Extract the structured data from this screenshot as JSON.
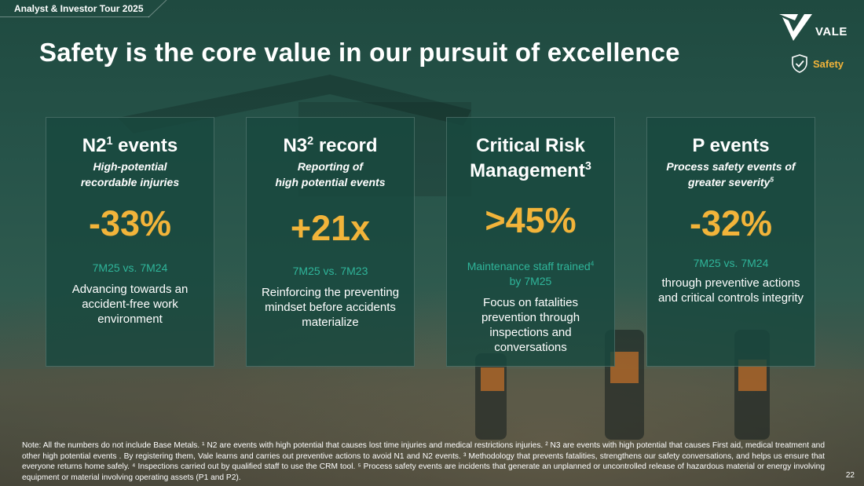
{
  "header": {
    "event_label": "Analyst & Investor Tour 2025",
    "title": "Safety is the core value in our pursuit of excellence",
    "logo_text": "VALE",
    "section_badge": "Safety"
  },
  "cards": [
    {
      "title": "N2",
      "title_sup": "1",
      "title_rest": " events",
      "subtitle_line1": "High-potential",
      "subtitle_line2": "recordable injuries",
      "value": "-33%",
      "comparison": "7M25 vs. 7M24",
      "description": "Advancing towards an accident-free work environment"
    },
    {
      "title": "N3",
      "title_sup": "2",
      "title_rest": " record",
      "subtitle_line1": "Reporting of",
      "subtitle_line2": "high potential events",
      "value": "+21x",
      "comparison": "7M25 vs. 7M23",
      "description": "Reinforcing the preventing mindset before accidents materialize"
    },
    {
      "title_line1": "Critical Risk",
      "title_line2": "Management",
      "title_sup": "3",
      "value": ">45%",
      "comparison_line1": "Maintenance staff trained",
      "comparison_sup": "4",
      "comparison_line2": "by 7M25",
      "description": "Focus on fatalities prevention through inspections and conversations"
    },
    {
      "title": "P events",
      "subtitle_line1": "Process safety events of",
      "subtitle_line2": "greater severity",
      "subtitle_sup": "5",
      "value": "-32%",
      "comparison": "7M25 vs. 7M24",
      "description": "through preventive actions and critical controls integrity"
    }
  ],
  "footer": {
    "note": "Note: All the numbers do not include Base Metals. ¹ N2 are events with high potential that causes lost time injuries and medical restrictions injuries. ² N3 are events with high potential that causes First aid, medical treatment and other high potential events . By registering them, Vale learns and carries out preventive actions to avoid N1 and N2 events. ³ Methodology that prevents fatalities, strengthens our safety conversations, and helps us ensure that everyone returns home safely. ⁴ Inspections carried out by qualified staff to use the CRM tool. ⁵ Process safety events are incidents that generate an unplanned or uncontrolled release of hazardous material or energy involving equipment or material involving operating assets (P1 and P2).",
    "page_number": "22"
  },
  "colors": {
    "accent_yellow": "#f2b43a",
    "accent_teal": "#2fb59a",
    "card_bg": "#18483e"
  },
  "icons": {
    "logo": "vale-logo-icon",
    "badge": "shield-check-icon"
  }
}
